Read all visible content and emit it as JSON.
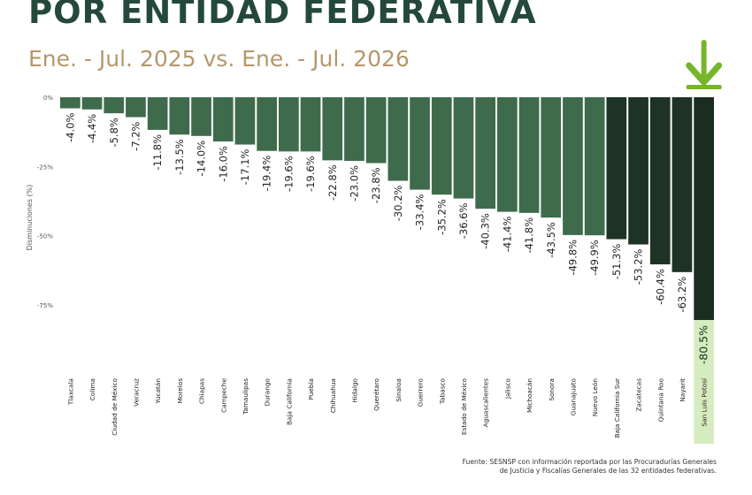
{
  "header": {
    "title": "POR ENTIDAD FEDERATIVA",
    "subtitle": "Ene. - Jul. 2025 vs. Ene. - Jul. 2026"
  },
  "colors": {
    "title": "#24493a",
    "subtitle": "#b3986b",
    "bar_main": "#3f6b4d",
    "bar_dark": "#1e3326",
    "bar_highlight_label_bg": "#d6ecc0",
    "arrow": "#77b52b"
  },
  "chart_data": {
    "type": "bar",
    "ylabel": "Disminuciones (%)",
    "ylim": [
      -80.5,
      0
    ],
    "yticks": [
      {
        "value": 0,
        "label": "0%"
      },
      {
        "value": -25,
        "label": "-25%"
      },
      {
        "value": -50,
        "label": "-50%"
      },
      {
        "value": -75,
        "label": "-75%"
      }
    ],
    "categories": [
      "Tlaxcala",
      "Colima",
      "Ciudad de México",
      "Veracruz",
      "Yucatán",
      "Morelos",
      "Chiapas",
      "Campeche",
      "Tamaulipas",
      "Durango",
      "Baja California",
      "Puebla",
      "Chihuahua",
      "Hidalgo",
      "Querétaro",
      "Sinaloa",
      "Guerrero",
      "Tabasco",
      "Estado de México",
      "Aguascalientes",
      "Jalisco",
      "Michoacán",
      "Sonora",
      "Guanajuato",
      "Nuevo León",
      "Baja California Sur",
      "Zacatecas",
      "Quintana Roo",
      "Nayarit",
      "San Luis Potosí"
    ],
    "values": [
      -4.0,
      -4.4,
      -5.8,
      -7.2,
      -11.8,
      -13.5,
      -14.0,
      -16.0,
      -17.1,
      -19.4,
      -19.6,
      -19.6,
      -22.8,
      -23.0,
      -23.8,
      -30.2,
      -33.4,
      -35.2,
      -36.6,
      -40.3,
      -41.4,
      -41.8,
      -43.5,
      -49.8,
      -49.9,
      -51.3,
      -53.2,
      -60.4,
      -63.2,
      -80.5
    ],
    "value_labels": [
      "-4.0%",
      "-4.4%",
      "-5.8%",
      "-7.2%",
      "-11.8%",
      "-13.5%",
      "-14.0%",
      "-16.0%",
      "-17.1%",
      "-19.4%",
      "-19.6%",
      "-19.6%",
      "-22.8%",
      "-23.0%",
      "-23.8%",
      "-30.2%",
      "-33.4%",
      "-35.2%",
      "-36.6%",
      "-40.3%",
      "-41.4%",
      "-41.8%",
      "-43.5%",
      "-49.8%",
      "-49.9%",
      "-51.3%",
      "-53.2%",
      "-60.4%",
      "-63.2%",
      "-80.5%"
    ],
    "dark_start_index": 25,
    "highlight_category": "San Luis Potosí",
    "grid": false,
    "legend": "none"
  },
  "footnote": {
    "line1": "Fuente: SESNSP con información reportada por las Procuradurías Generales",
    "line2": "de Justicia y Fiscalías Generales de las 32 entidades federativas."
  },
  "icons": {
    "highlight_marker": "arrow-down-icon"
  }
}
